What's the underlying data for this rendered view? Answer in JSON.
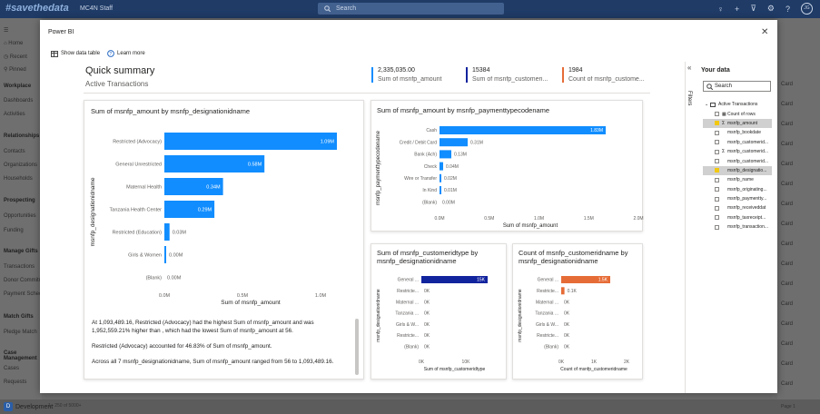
{
  "app": {
    "brand": "#savethedata",
    "name": "MC4N Staff",
    "search_placeholder": "Search",
    "avatar": "JG"
  },
  "nav": {
    "items": [
      {
        "label": "Home"
      },
      {
        "label": "Recent"
      },
      {
        "label": "Pinned"
      }
    ],
    "sections": [
      {
        "label": "Workplace",
        "items": [
          "Dashboards",
          "Activities"
        ]
      },
      {
        "label": "Relationships",
        "items": [
          "Contacts",
          "Organizations",
          "Households"
        ]
      },
      {
        "label": "Prospecting",
        "items": [
          "Opportunities",
          "Funding"
        ]
      },
      {
        "label": "Manage Gifts",
        "items": [
          "Transactions",
          "Donor Commitments",
          "Payment Schedules"
        ]
      },
      {
        "label": "Match Gifts",
        "items": [
          "Pledge Match"
        ]
      },
      {
        "label": "Case Management",
        "items": [
          "Cases",
          "Requests"
        ]
      }
    ]
  },
  "right_bg_labels": [
    "Card",
    "Card",
    "Card",
    "Card",
    "Card",
    "Card",
    "Card",
    "Card",
    "Card",
    "Card",
    "Card",
    "Card",
    "Card",
    "Card",
    "Card",
    "Card"
  ],
  "status": {
    "env": "Development",
    "env_badge": "D",
    "records": "1 - 250 of 5000+",
    "page": "Page 1"
  },
  "dialog": {
    "title": "Power BI",
    "close": "✕",
    "show_data_table": "Show data table",
    "learn_more": "Learn more",
    "summary_title": "Quick summary",
    "summary_subtitle": "Active Transactions",
    "kpis": [
      {
        "value": "2,335,035.00",
        "label": "Sum of msnfp_amount",
        "color": "#118dff"
      },
      {
        "value": "15384",
        "label": "Sum of msnfp_customeri...",
        "color": "#12239e"
      },
      {
        "value": "1984",
        "label": "Count of msnfp_custome...",
        "color": "#e66c37"
      }
    ],
    "narrative": [
      "At 1,093,489.16, Restricted (Advocacy) had the highest Sum of msnfp_amount and was 1,952,559.21% higher than , which had the lowest Sum of msnfp_amount at 56.",
      "Restricted (Advocacy) accounted for 46.83% of Sum of msnfp_amount.",
      "Across all 7 msnfp_designationidname, Sum of msnfp_amount ranged from 56 to 1,093,489.16."
    ],
    "filters_label": "Filters",
    "your_data": "Your data",
    "search": "Search",
    "fields_root": "Active Transactions",
    "fields": [
      {
        "label": "Count of rows",
        "checked": false,
        "sigma": false,
        "selected": false,
        "icon": "table"
      },
      {
        "label": "msnfp_amount",
        "checked": true,
        "sigma": true,
        "selected": true
      },
      {
        "label": "msnfp_bookdate",
        "checked": false,
        "sigma": false,
        "selected": false
      },
      {
        "label": "msnfp_customerid...",
        "checked": false,
        "sigma": false,
        "selected": false
      },
      {
        "label": "msnfp_customerid...",
        "checked": false,
        "sigma": true,
        "selected": false
      },
      {
        "label": "msnfp_customerid...",
        "checked": false,
        "sigma": false,
        "selected": false
      },
      {
        "label": "msnfp_designatio...",
        "checked": true,
        "sigma": false,
        "selected": true
      },
      {
        "label": "msnfp_name",
        "checked": false,
        "sigma": false,
        "selected": false
      },
      {
        "label": "msnfp_originating...",
        "checked": false,
        "sigma": false,
        "selected": false
      },
      {
        "label": "msnfp_paymentty...",
        "checked": false,
        "sigma": false,
        "selected": false
      },
      {
        "label": "msnfp_receiveddat",
        "checked": false,
        "sigma": false,
        "selected": false
      },
      {
        "label": "msnfp_taxreceipt...",
        "checked": false,
        "sigma": false,
        "selected": false
      },
      {
        "label": "msnfp_transaction...",
        "checked": false,
        "sigma": false,
        "selected": false
      }
    ]
  },
  "chart_data": [
    {
      "type": "bar",
      "orientation": "horizontal",
      "title": "Sum of msnfp_amount by msnfp_designationidname",
      "xlabel": "Sum of msnfp_amount",
      "ylabel": "msnfp_designationidname",
      "categories": [
        "Restricted (Advocacy)",
        "General Unrestricted",
        "Maternal Health",
        "Tanzania Health Center",
        "Restricted (Education)",
        "Girls & Women",
        "(Blank)"
      ],
      "values": [
        1093489.16,
        580000,
        340000,
        290000,
        30000,
        56,
        0
      ],
      "data_labels": [
        "1.09M",
        "0.58M",
        "0.34M",
        "0.29M",
        "0.03M",
        "0.00M",
        "0.00M"
      ],
      "xlim": [
        0,
        1000000
      ],
      "ticks": [
        "0.0M",
        "0.5M",
        "1.0M"
      ],
      "color": "#118dff",
      "highlight_color": "#1a73e8",
      "grid": false
    },
    {
      "type": "bar",
      "orientation": "horizontal",
      "title": "Sum of msnfp_amount by msnfp_paymenttypecodename",
      "xlabel": "Sum of msnfp_amount",
      "ylabel": "msnfp_paymenttypecodename",
      "categories": [
        "Cash",
        "Credit / Debit Card",
        "Bank (Ach)",
        "Check",
        "Wire or Transfer",
        "In Kind",
        "(Blank)"
      ],
      "values": [
        1830000,
        310000,
        130000,
        40000,
        20000,
        10000,
        0
      ],
      "data_labels": [
        "1.83M",
        "0.31M",
        "0.13M",
        "0.04M",
        "0.02M",
        "0.01M",
        "0.00M"
      ],
      "xlim": [
        0,
        2000000
      ],
      "ticks": [
        "0.0M",
        "0.5M",
        "1.0M",
        "1.5M",
        "2.0M"
      ],
      "color": "#118dff",
      "grid": false
    },
    {
      "type": "bar",
      "orientation": "horizontal",
      "title": "Sum of msnfp_customeridtype by msnfp_designationidname",
      "xlabel": "Sum of msnfp_customeridtype",
      "ylabel": "msnfp_designationidname",
      "categories": [
        "General ...",
        "Restricte...",
        "Maternal ...",
        "Tanzania ...",
        "Girls & W...",
        "Restricte...",
        "(Blank)"
      ],
      "values": [
        15000,
        0,
        0,
        0,
        0,
        0,
        0
      ],
      "data_labels": [
        "15K",
        "0K",
        "0K",
        "0K",
        "0K",
        "0K",
        "0K"
      ],
      "xlim": [
        0,
        15000
      ],
      "ticks": [
        "0K",
        "10K"
      ],
      "color": "#12239e",
      "grid": false
    },
    {
      "type": "bar",
      "orientation": "horizontal",
      "title": "Count of msnfp_customeridname by msnfp_designationidname",
      "xlabel": "Count of msnfp_customeridname",
      "ylabel": "msnfp_designationidname",
      "categories": [
        "General ...",
        "Restricte...",
        "Maternal ...",
        "Tanzania ...",
        "Girls & W...",
        "Restricte...",
        "(Blank)"
      ],
      "values": [
        1500,
        100,
        0,
        0,
        0,
        0,
        0
      ],
      "data_labels": [
        "1.5K",
        "0.1K",
        "0K",
        "0K",
        "0K",
        "0K",
        "0K"
      ],
      "xlim": [
        0,
        2000
      ],
      "ticks": [
        "0K",
        "1K",
        "2K"
      ],
      "color": "#e66c37",
      "grid": false
    }
  ]
}
